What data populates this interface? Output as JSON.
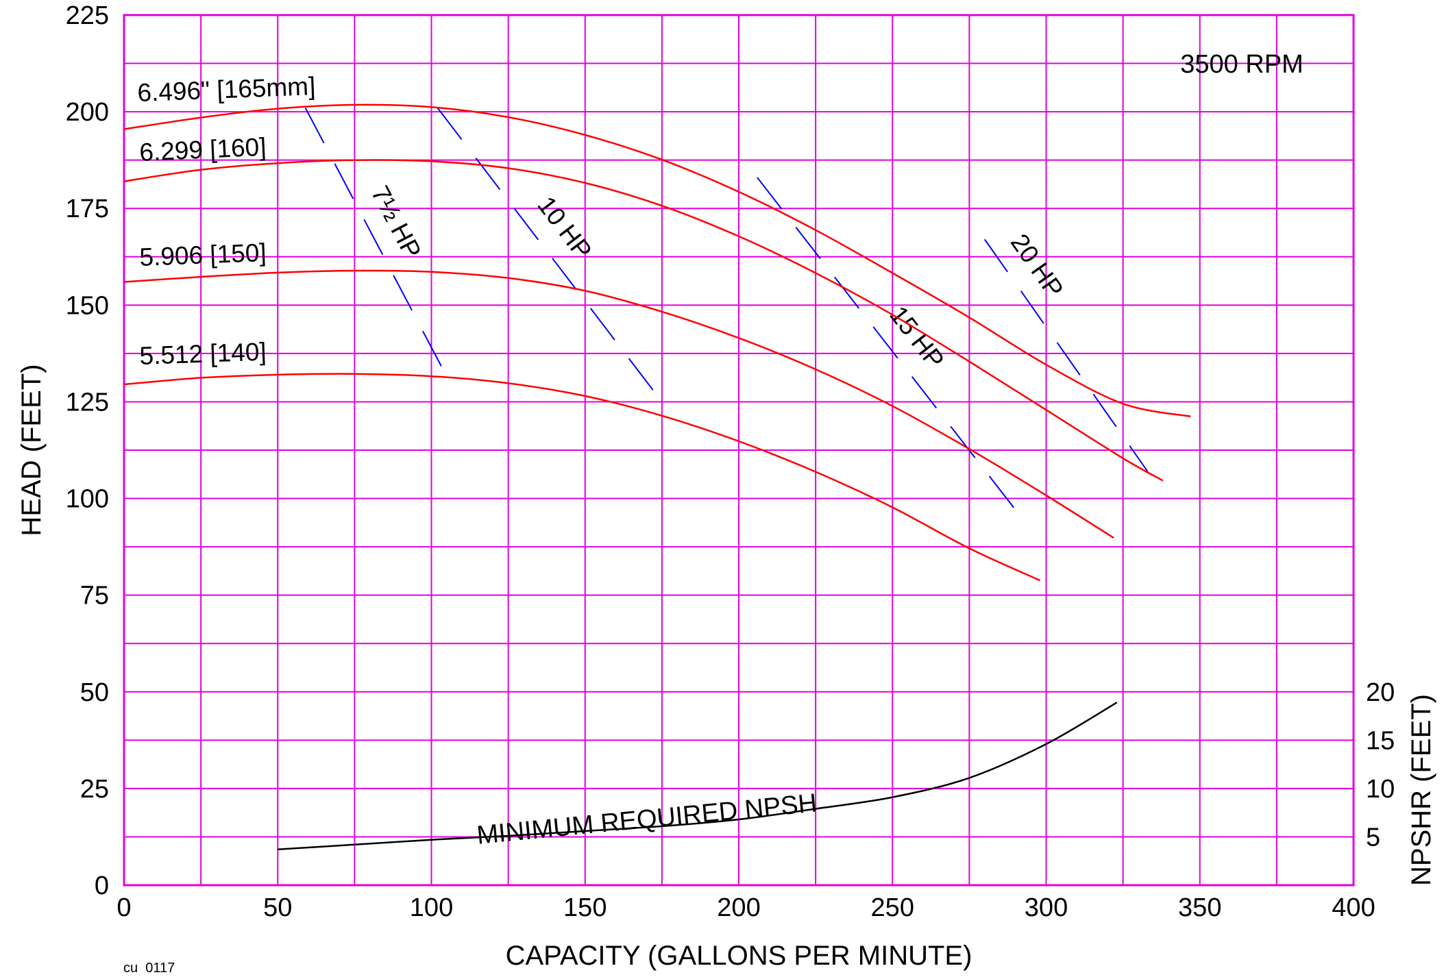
{
  "chart_data": {
    "type": "line",
    "annotation_rpm": "3500 RPM",
    "drawing_number": "cu_0117",
    "xlabel": "CAPACITY (GALLONS PER MINUTE)",
    "ylabel": "HEAD (FEET)",
    "y2label": "NPSHR (FEET)",
    "xlim": [
      0,
      400
    ],
    "ylim": [
      0,
      225
    ],
    "xticks": [
      0,
      50,
      100,
      150,
      200,
      250,
      300,
      350,
      400
    ],
    "yticks": [
      0,
      25,
      50,
      75,
      100,
      125,
      150,
      175,
      200,
      225
    ],
    "y2ticks": [
      5,
      10,
      15,
      20
    ],
    "grid_color": "#e000e0",
    "grid": true,
    "series": [
      {
        "name": "6.496\" [165mm]",
        "color": "#ff0000",
        "x": [
          0,
          25,
          50,
          75,
          100,
          125,
          150,
          175,
          200,
          225,
          250,
          275,
          300,
          325,
          347
        ],
        "y": [
          195.5,
          198.5,
          200.8,
          201.8,
          201.2,
          198.6,
          194.0,
          187.6,
          179.3,
          169.4,
          158.3,
          146.8,
          134.6,
          124.5,
          121.2
        ]
      },
      {
        "name": "6.299 [160]",
        "color": "#ff0000",
        "x": [
          0,
          25,
          50,
          75,
          100,
          125,
          150,
          175,
          200,
          225,
          250,
          275,
          300,
          325,
          338
        ],
        "y": [
          182.0,
          185.0,
          186.7,
          187.5,
          187.2,
          185.4,
          181.6,
          175.7,
          167.8,
          158.3,
          147.5,
          135.4,
          122.9,
          110.4,
          104.6
        ]
      },
      {
        "name": "5.906 [150]",
        "color": "#ff0000",
        "x": [
          0,
          25,
          50,
          75,
          100,
          125,
          150,
          175,
          200,
          225,
          250,
          275,
          300,
          322
        ],
        "y": [
          156.0,
          157.3,
          158.4,
          158.9,
          158.6,
          157.0,
          153.7,
          148.3,
          141.5,
          133.4,
          123.9,
          112.8,
          100.8,
          89.8
        ]
      },
      {
        "name": "5.512 [140]",
        "color": "#ff0000",
        "x": [
          0,
          25,
          50,
          75,
          100,
          125,
          150,
          175,
          200,
          225,
          250,
          275,
          298
        ],
        "y": [
          129.5,
          131.2,
          132.0,
          132.2,
          131.6,
          129.8,
          126.5,
          121.4,
          114.8,
          106.9,
          97.7,
          87.1,
          78.8
        ]
      }
    ],
    "hp_lines": [
      {
        "name": "7½ HP",
        "color": "#0000ff",
        "x": [
          59,
          106
        ],
        "y": [
          201,
          130
        ]
      },
      {
        "name": "10 HP",
        "color": "#0000ff",
        "x": [
          102,
          175
        ],
        "y": [
          201,
          125
        ]
      },
      {
        "name": "15 HP",
        "color": "#0000ff",
        "x": [
          206,
          294
        ],
        "y": [
          183,
          93
        ]
      },
      {
        "name": "20 HP",
        "color": "#0000ff",
        "x": [
          280,
          333
        ],
        "y": [
          167,
          107
        ]
      }
    ],
    "npshr": {
      "name": "MINIMUM REQUIRED NPSH",
      "color": "#000000",
      "x": [
        50,
        75,
        100,
        125,
        150,
        175,
        200,
        225,
        250,
        275,
        300,
        323
      ],
      "y": [
        3.7,
        4.2,
        4.7,
        5.1,
        5.6,
        6.1,
        6.8,
        7.9,
        9.1,
        11.1,
        14.6,
        18.9
      ]
    },
    "npshr_axis": {
      "map_npshr_5_to_head": 12.5,
      "map_npshr_20_to_head": 50
    }
  }
}
